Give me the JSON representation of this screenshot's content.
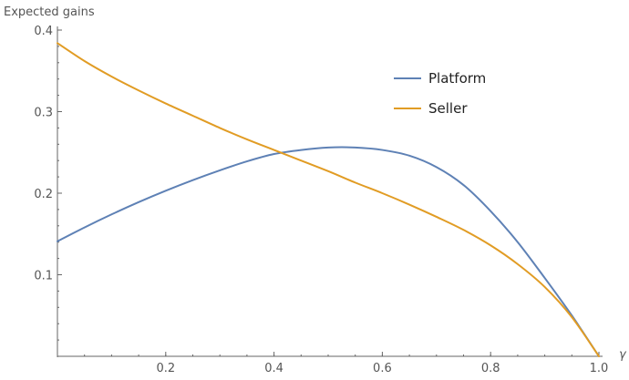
{
  "chart_data": {
    "type": "line",
    "title": "",
    "xlabel": "γ",
    "ylabel": "Expected gains",
    "xlim": [
      0,
      1
    ],
    "ylim": [
      0,
      0.4
    ],
    "x_ticks": [
      0.2,
      0.4,
      0.6,
      0.8,
      1.0
    ],
    "x_tick_labels": [
      "0.2",
      "0.4",
      "0.6",
      "0.8",
      "1.0"
    ],
    "y_ticks": [
      0.1,
      0.2,
      0.3,
      0.4
    ],
    "y_tick_labels": [
      "0.1",
      "0.2",
      "0.3",
      "0.4"
    ],
    "grid": false,
    "legend_position": "top-right",
    "series": [
      {
        "name": "Platform",
        "color": "#5e81b5",
        "x": [
          0,
          0.05,
          0.1,
          0.15,
          0.2,
          0.25,
          0.3,
          0.35,
          0.4,
          0.45,
          0.5,
          0.55,
          0.6,
          0.65,
          0.7,
          0.75,
          0.8,
          0.85,
          0.9,
          0.95,
          1.0
        ],
        "y": [
          0.141,
          0.158,
          0.174,
          0.189,
          0.203,
          0.216,
          0.228,
          0.239,
          0.248,
          0.253,
          0.256,
          0.256,
          0.253,
          0.246,
          0.232,
          0.21,
          0.178,
          0.14,
          0.096,
          0.05,
          0.0
        ]
      },
      {
        "name": "Seller",
        "color": "#e19c24",
        "x": [
          0,
          0.05,
          0.1,
          0.15,
          0.2,
          0.25,
          0.3,
          0.35,
          0.4,
          0.45,
          0.5,
          0.55,
          0.6,
          0.65,
          0.7,
          0.75,
          0.8,
          0.85,
          0.9,
          0.95,
          1.0
        ],
        "y": [
          0.384,
          0.362,
          0.343,
          0.326,
          0.31,
          0.295,
          0.28,
          0.266,
          0.253,
          0.24,
          0.227,
          0.213,
          0.2,
          0.186,
          0.171,
          0.155,
          0.136,
          0.113,
          0.085,
          0.048,
          0.0
        ]
      }
    ]
  }
}
